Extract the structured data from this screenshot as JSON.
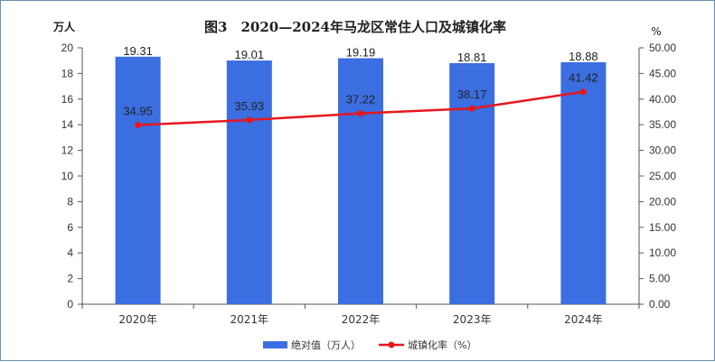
{
  "chart_data": {
    "type": "bar",
    "title": "图3　2020—2024年马龙区常住人口及城镇化率",
    "ylabel_left": "万人",
    "ylabel_right": "%",
    "categories": [
      "2020年",
      "2021年",
      "2022年",
      "2023年",
      "2024年"
    ],
    "series": [
      {
        "name": "绝对值（万人）",
        "type": "bar",
        "axis": "left",
        "values": [
          19.31,
          19.01,
          19.19,
          18.81,
          18.88
        ],
        "labels": [
          "19.31",
          "19.01",
          "19.19",
          "18.81",
          "18.88"
        ],
        "color": "#3b6ee0"
      },
      {
        "name": "城镇化率（%）",
        "type": "line",
        "axis": "right",
        "values": [
          34.95,
          35.93,
          37.22,
          38.17,
          41.42
        ],
        "labels": [
          "34.95",
          "35.93",
          "37.22",
          "38.17",
          "41.42"
        ],
        "color": "#e8161c"
      }
    ],
    "ylim_left": [
      0,
      20
    ],
    "ylim_right": [
      0,
      50
    ],
    "yticks_left": [
      "0",
      "2",
      "4",
      "6",
      "8",
      "10",
      "12",
      "14",
      "16",
      "18",
      "20"
    ],
    "yticks_right": [
      "0.00",
      "5.00",
      "10.00",
      "15.00",
      "20.00",
      "25.00",
      "30.00",
      "35.00",
      "40.00",
      "45.00",
      "50.00"
    ],
    "legend_position": "bottom",
    "grid": false
  }
}
